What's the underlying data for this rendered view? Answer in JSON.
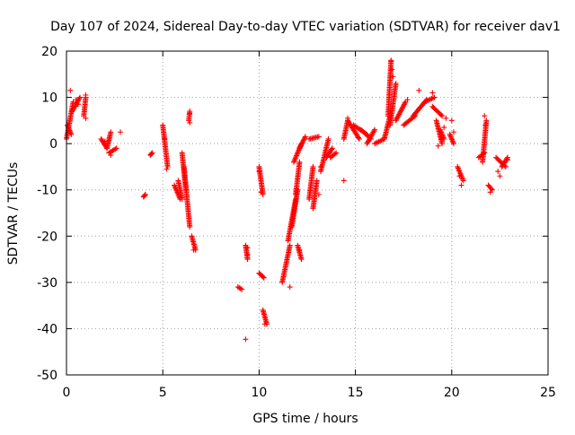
{
  "chart_data": {
    "type": "scatter",
    "title": "Day 107 of 2024, Sidereal Day-to-day VTEC variation (SDTVAR) for receiver dav1",
    "xlabel": "GPS time / hours",
    "ylabel": "SDTVAR / TECUs",
    "xlim": [
      0,
      25
    ],
    "ylim": [
      -50,
      20
    ],
    "xticks": [
      0,
      5,
      10,
      15,
      20,
      25
    ],
    "yticks": [
      -50,
      -40,
      -30,
      -20,
      -10,
      0,
      10,
      20
    ],
    "xtick_labels": [
      "0",
      "5",
      "10",
      "15",
      "20",
      "25"
    ],
    "ytick_labels": [
      "-50",
      "-40",
      "-30",
      "-20",
      "-10",
      "0",
      "10",
      "20"
    ],
    "grid": true,
    "marker": "+",
    "color": "#ff0000",
    "series": [
      {
        "name": "SDTVAR",
        "segments": [
          {
            "x0": 0.0,
            "y0": 1,
            "x1": 0.35,
            "y1": 9
          },
          {
            "x0": 0.05,
            "y0": 4,
            "x1": 0.25,
            "y1": 2
          },
          {
            "x0": 0.3,
            "y0": 7,
            "x1": 0.7,
            "y1": 10
          },
          {
            "x0": 0.9,
            "y0": 6,
            "x1": 1.0,
            "y1": 10
          },
          {
            "x0": 1.8,
            "y0": 1,
            "x1": 2.1,
            "y1": -1
          },
          {
            "x0": 2.1,
            "y0": -1,
            "x1": 2.3,
            "y1": 2.5
          },
          {
            "x0": 2.2,
            "y0": -2,
            "x1": 2.6,
            "y1": -1
          },
          {
            "x0": 4.0,
            "y0": -11.5,
            "x1": 4.1,
            "y1": -11
          },
          {
            "x0": 4.35,
            "y0": -2.5,
            "x1": 4.45,
            "y1": -2
          },
          {
            "x0": 5.0,
            "y0": 4,
            "x1": 5.25,
            "y1": -5
          },
          {
            "x0": 5.6,
            "y0": -9,
            "x1": 5.9,
            "y1": -12
          },
          {
            "x0": 5.8,
            "y0": -8,
            "x1": 6.0,
            "y1": -12
          },
          {
            "x0": 6.0,
            "y0": -2,
            "x1": 6.2,
            "y1": -10
          },
          {
            "x0": 6.1,
            "y0": -5,
            "x1": 6.4,
            "y1": -18
          },
          {
            "x0": 6.5,
            "y0": -20,
            "x1": 6.7,
            "y1": -23
          },
          {
            "x0": 6.35,
            "y0": 5,
            "x1": 6.4,
            "y1": 7
          },
          {
            "x0": 8.9,
            "y0": -31,
            "x1": 9.1,
            "y1": -31.5
          },
          {
            "x0": 9.3,
            "y0": -22,
            "x1": 9.4,
            "y1": -25
          },
          {
            "x0": 10.0,
            "y0": -5,
            "x1": 10.2,
            "y1": -11
          },
          {
            "x0": 10.0,
            "y0": -28,
            "x1": 10.25,
            "y1": -29
          },
          {
            "x0": 10.2,
            "y0": -36,
            "x1": 10.4,
            "y1": -39
          },
          {
            "x0": 11.2,
            "y0": -30,
            "x1": 11.6,
            "y1": -22
          },
          {
            "x0": 11.5,
            "y0": -21,
            "x1": 11.9,
            "y1": -12
          },
          {
            "x0": 11.7,
            "y0": -18,
            "x1": 12.0,
            "y1": -10
          },
          {
            "x0": 11.9,
            "y0": -11,
            "x1": 12.1,
            "y1": -4
          },
          {
            "x0": 11.8,
            "y0": -4,
            "x1": 12.2,
            "y1": 0
          },
          {
            "x0": 12.1,
            "y0": -1,
            "x1": 12.4,
            "y1": 1.5
          },
          {
            "x0": 12.0,
            "y0": -22,
            "x1": 12.2,
            "y1": -25
          },
          {
            "x0": 12.6,
            "y0": -12,
            "x1": 12.8,
            "y1": -5
          },
          {
            "x0": 12.8,
            "y0": -14,
            "x1": 13.0,
            "y1": -8
          },
          {
            "x0": 12.6,
            "y0": 1,
            "x1": 13.1,
            "y1": 1.5
          },
          {
            "x0": 13.2,
            "y0": -6,
            "x1": 13.6,
            "y1": 1
          },
          {
            "x0": 13.5,
            "y0": -3,
            "x1": 13.8,
            "y1": -1
          },
          {
            "x0": 13.7,
            "y0": -3,
            "x1": 14.0,
            "y1": -2
          },
          {
            "x0": 14.4,
            "y0": 1,
            "x1": 14.6,
            "y1": 5
          },
          {
            "x0": 14.6,
            "y0": 5,
            "x1": 15.2,
            "y1": 1
          },
          {
            "x0": 14.9,
            "y0": 4,
            "x1": 15.6,
            "y1": 2
          },
          {
            "x0": 15.3,
            "y0": 3,
            "x1": 15.8,
            "y1": 1
          },
          {
            "x0": 15.6,
            "y0": 0,
            "x1": 16.0,
            "y1": 3
          },
          {
            "x0": 16.0,
            "y0": 0,
            "x1": 16.5,
            "y1": 1
          },
          {
            "x0": 16.5,
            "y0": 1,
            "x1": 16.8,
            "y1": 6
          },
          {
            "x0": 16.7,
            "y0": 6,
            "x1": 16.85,
            "y1": 18
          },
          {
            "x0": 16.8,
            "y0": 4,
            "x1": 17.1,
            "y1": 13
          },
          {
            "x0": 17.1,
            "y0": 5,
            "x1": 17.6,
            "y1": 9
          },
          {
            "x0": 17.5,
            "y0": 4,
            "x1": 18.1,
            "y1": 6
          },
          {
            "x0": 18.0,
            "y0": 6,
            "x1": 18.7,
            "y1": 9.5
          },
          {
            "x0": 18.6,
            "y0": 9,
            "x1": 19.1,
            "y1": 10
          },
          {
            "x0": 19.0,
            "y0": 8,
            "x1": 19.5,
            "y1": 6
          },
          {
            "x0": 19.2,
            "y0": 5,
            "x1": 19.5,
            "y1": 0
          },
          {
            "x0": 19.4,
            "y0": 3,
            "x1": 19.6,
            "y1": 1
          },
          {
            "x0": 19.9,
            "y0": 2,
            "x1": 20.1,
            "y1": 0
          },
          {
            "x0": 20.3,
            "y0": -5,
            "x1": 20.6,
            "y1": -8
          },
          {
            "x0": 21.4,
            "y0": -3,
            "x1": 21.7,
            "y1": -2
          },
          {
            "x0": 21.6,
            "y0": -4,
            "x1": 21.8,
            "y1": 5
          },
          {
            "x0": 21.9,
            "y0": -9,
            "x1": 22.1,
            "y1": -10
          },
          {
            "x0": 22.3,
            "y0": -3,
            "x1": 22.8,
            "y1": -5
          },
          {
            "x0": 22.6,
            "y0": -5,
            "x1": 22.9,
            "y1": -3
          }
        ],
        "points": [
          {
            "x": 0.2,
            "y": 11.5
          },
          {
            "x": 0.5,
            "y": 9.5
          },
          {
            "x": 0.6,
            "y": 8.5
          },
          {
            "x": 1.0,
            "y": 10.5
          },
          {
            "x": 1.0,
            "y": 5.5
          },
          {
            "x": 2.0,
            "y": 0.5
          },
          {
            "x": 2.3,
            "y": -2.5
          },
          {
            "x": 2.8,
            "y": 2.5
          },
          {
            "x": 5.1,
            "y": 1
          },
          {
            "x": 5.2,
            "y": -5.5
          },
          {
            "x": 6.4,
            "y": 6.5
          },
          {
            "x": 6.4,
            "y": 4.5
          },
          {
            "x": 6.6,
            "y": -23
          },
          {
            "x": 9.3,
            "y": -42.3
          },
          {
            "x": 9.4,
            "y": -24
          },
          {
            "x": 9.4,
            "y": -22.5
          },
          {
            "x": 10.1,
            "y": -10.5
          },
          {
            "x": 10.0,
            "y": -6
          },
          {
            "x": 10.3,
            "y": -39
          },
          {
            "x": 11.6,
            "y": -31
          },
          {
            "x": 12.1,
            "y": -23
          },
          {
            "x": 13.1,
            "y": -11
          },
          {
            "x": 13.2,
            "y": -5
          },
          {
            "x": 14.4,
            "y": -8
          },
          {
            "x": 14.6,
            "y": 5.5
          },
          {
            "x": 16.85,
            "y": 17.8
          },
          {
            "x": 16.9,
            "y": 16
          },
          {
            "x": 16.95,
            "y": 14.5
          },
          {
            "x": 17.7,
            "y": 9.5
          },
          {
            "x": 18.3,
            "y": 11.5
          },
          {
            "x": 19.0,
            "y": 11
          },
          {
            "x": 19.3,
            "y": -0.5
          },
          {
            "x": 19.6,
            "y": 3.5
          },
          {
            "x": 19.5,
            "y": 1
          },
          {
            "x": 19.7,
            "y": 5.5
          },
          {
            "x": 20.0,
            "y": 5
          },
          {
            "x": 20.1,
            "y": 2.5
          },
          {
            "x": 20.5,
            "y": -9
          },
          {
            "x": 20.4,
            "y": -7
          },
          {
            "x": 21.7,
            "y": 6
          },
          {
            "x": 21.75,
            "y": 4
          },
          {
            "x": 22.0,
            "y": -10.5
          },
          {
            "x": 22.5,
            "y": -7
          },
          {
            "x": 22.9,
            "y": -3.5
          },
          {
            "x": 22.4,
            "y": -6
          }
        ]
      }
    ]
  }
}
